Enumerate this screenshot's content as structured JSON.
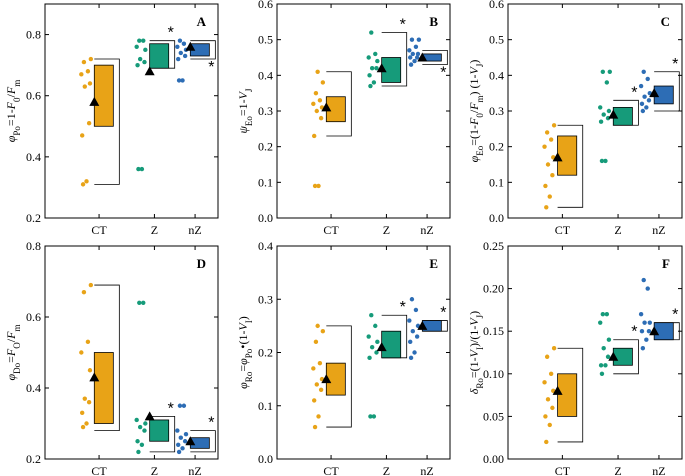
{
  "colors": {
    "CT": "#E8A317",
    "Z": "#169B7A",
    "nZ": "#2D6DB5"
  },
  "chart_data": [
    {
      "type": "box-scatter",
      "panel_label": "A",
      "ylabel": "φPo=1-F0/Fm",
      "ylabel_parts": [
        "φ",
        "Po",
        "=1-",
        "F",
        "0",
        "/",
        "F",
        "m"
      ],
      "ylim": [
        0.2,
        0.9
      ],
      "yticks": [
        0.2,
        0.4,
        0.6,
        0.8
      ],
      "categories": [
        "CT",
        "Z",
        "nZ"
      ],
      "show_xticks": true,
      "groups": [
        {
          "name": "CT",
          "points": [
            0.31,
            0.32,
            0.47,
            0.51,
            0.63,
            0.64,
            0.67,
            0.68,
            0.71,
            0.72
          ],
          "q1": 0.5,
          "q3": 0.7,
          "mean": 0.58,
          "whisker": [
            0.31,
            0.72
          ],
          "star": ""
        },
        {
          "name": "Z",
          "points": [
            0.36,
            0.36,
            0.7,
            0.71,
            0.72,
            0.75,
            0.76,
            0.78,
            0.78
          ],
          "q1": 0.69,
          "q3": 0.77,
          "mean": 0.68,
          "whisker": [
            0.69,
            0.78
          ],
          "star": "top"
        },
        {
          "name": "nZ",
          "points": [
            0.65,
            0.65,
            0.72,
            0.73,
            0.74,
            0.75,
            0.76,
            0.77,
            0.78
          ],
          "q1": 0.73,
          "q3": 0.77,
          "mean": 0.76,
          "whisker": [
            0.72,
            0.78
          ],
          "star": "bottom"
        }
      ]
    },
    {
      "type": "box-scatter",
      "panel_label": "B",
      "ylabel": "ψEo=1-VJ",
      "ylabel_parts": [
        "ψ",
        "Eo",
        "=1-",
        "V",
        "J"
      ],
      "ylim": [
        0.0,
        0.6
      ],
      "yticks": [
        0.0,
        0.1,
        0.2,
        0.3,
        0.4,
        0.5,
        0.6
      ],
      "categories": [
        "CT",
        "Z",
        "nZ"
      ],
      "show_xticks": true,
      "groups": [
        {
          "name": "CT",
          "points": [
            0.09,
            0.09,
            0.23,
            0.28,
            0.3,
            0.31,
            0.32,
            0.33,
            0.35,
            0.38,
            0.41
          ],
          "q1": 0.27,
          "q3": 0.34,
          "mean": 0.31,
          "whisker": [
            0.23,
            0.41
          ],
          "star": ""
        },
        {
          "name": "Z",
          "points": [
            0.37,
            0.38,
            0.4,
            0.42,
            0.42,
            0.44,
            0.45,
            0.46,
            0.52
          ],
          "q1": 0.38,
          "q3": 0.45,
          "mean": 0.42,
          "whisker": [
            0.37,
            0.52
          ],
          "star": "top"
        },
        {
          "name": "nZ",
          "points": [
            0.43,
            0.44,
            0.45,
            0.45,
            0.46,
            0.46,
            0.47,
            0.48,
            0.5,
            0.5
          ],
          "q1": 0.44,
          "q3": 0.46,
          "mean": 0.45,
          "whisker": [
            0.43,
            0.47
          ],
          "star": "bottom"
        }
      ]
    },
    {
      "type": "box-scatter",
      "panel_label": "C",
      "ylabel": "φEo=(1-F0/Fm) (1-VJ)",
      "ylabel_parts": [
        "φ",
        "Eo",
        "=(1-",
        "F",
        "0",
        "/",
        "F",
        "m",
        ") (1-",
        "V",
        "J",
        ")"
      ],
      "ylim": [
        0.0,
        0.6
      ],
      "yticks": [
        0.0,
        0.1,
        0.2,
        0.3,
        0.4,
        0.5,
        0.6
      ],
      "categories": [
        "CT",
        "Z",
        "nZ"
      ],
      "show_xticks": true,
      "groups": [
        {
          "name": "CT",
          "points": [
            0.03,
            0.06,
            0.09,
            0.12,
            0.15,
            0.17,
            0.2,
            0.22,
            0.24,
            0.26
          ],
          "q1": 0.12,
          "q3": 0.23,
          "mean": 0.17,
          "whisker": [
            0.03,
            0.26
          ],
          "star": ""
        },
        {
          "name": "Z",
          "points": [
            0.16,
            0.16,
            0.27,
            0.28,
            0.29,
            0.3,
            0.31,
            0.38,
            0.41,
            0.41
          ],
          "q1": 0.26,
          "q3": 0.31,
          "mean": 0.29,
          "whisker": [
            0.26,
            0.33
          ],
          "star": "top"
        },
        {
          "name": "nZ",
          "points": [
            0.3,
            0.31,
            0.32,
            0.33,
            0.34,
            0.35,
            0.37,
            0.39,
            0.41
          ],
          "q1": 0.32,
          "q3": 0.37,
          "mean": 0.35,
          "whisker": [
            0.3,
            0.41
          ],
          "star": "top"
        }
      ]
    },
    {
      "type": "box-scatter",
      "panel_label": "D",
      "ylabel": "φDo=F0/Fm",
      "ylabel_parts": [
        "φ",
        "Do",
        "=",
        "F",
        "O",
        "/",
        "F",
        "m"
      ],
      "ylim": [
        0.2,
        0.8
      ],
      "yticks": [
        0.2,
        0.4,
        0.6,
        0.8
      ],
      "categories": [
        "CT",
        "Z",
        "nZ"
      ],
      "show_xticks": true,
      "groups": [
        {
          "name": "CT",
          "points": [
            0.29,
            0.3,
            0.33,
            0.36,
            0.37,
            0.45,
            0.5,
            0.53,
            0.67,
            0.69
          ],
          "q1": 0.3,
          "q3": 0.5,
          "mean": 0.43,
          "whisker": [
            0.28,
            0.69
          ],
          "star": ""
        },
        {
          "name": "Z",
          "points": [
            0.22,
            0.24,
            0.25,
            0.28,
            0.29,
            0.3,
            0.31,
            0.64,
            0.64
          ],
          "q1": 0.25,
          "q3": 0.31,
          "mean": 0.32,
          "whisker": [
            0.22,
            0.32
          ],
          "star": "top"
        },
        {
          "name": "nZ",
          "points": [
            0.22,
            0.23,
            0.24,
            0.25,
            0.26,
            0.27,
            0.28,
            0.35,
            0.35
          ],
          "q1": 0.23,
          "q3": 0.26,
          "mean": 0.25,
          "whisker": [
            0.22,
            0.28
          ],
          "star": "top"
        }
      ]
    },
    {
      "type": "box-scatter",
      "panel_label": "E",
      "ylabel": "φRo=φPo•(1-VI)",
      "ylabel_parts": [
        "φ",
        "Ro",
        "=",
        "φ",
        "Po",
        "•(1-",
        "V",
        "I",
        ")"
      ],
      "ylim": [
        0.0,
        0.4
      ],
      "yticks": [
        0.0,
        0.1,
        0.2,
        0.3,
        0.4
      ],
      "categories": [
        "CT",
        "Z",
        "nZ"
      ],
      "show_xticks": true,
      "groups": [
        {
          "name": "CT",
          "points": [
            0.06,
            0.08,
            0.11,
            0.13,
            0.14,
            0.15,
            0.17,
            0.18,
            0.22,
            0.24,
            0.25
          ],
          "q1": 0.12,
          "q3": 0.18,
          "mean": 0.15,
          "whisker": [
            0.06,
            0.25
          ],
          "star": ""
        },
        {
          "name": "Z",
          "points": [
            0.08,
            0.08,
            0.19,
            0.2,
            0.21,
            0.22,
            0.23,
            0.25,
            0.27
          ],
          "q1": 0.19,
          "q3": 0.24,
          "mean": 0.21,
          "whisker": [
            0.19,
            0.27
          ],
          "star": "top"
        },
        {
          "name": "nZ",
          "points": [
            0.19,
            0.2,
            0.22,
            0.23,
            0.24,
            0.25,
            0.26,
            0.28,
            0.3
          ],
          "q1": 0.24,
          "q3": 0.26,
          "mean": 0.25,
          "whisker": [
            0.24,
            0.26
          ],
          "star": "top"
        }
      ]
    },
    {
      "type": "box-scatter",
      "panel_label": "F",
      "ylabel": "δRo=(1-VI)/(1-VJ)",
      "ylabel_parts": [
        "δ",
        "Ro",
        "=(1-",
        "V",
        "I",
        ")/(1-",
        "V",
        "J",
        ")"
      ],
      "ylim": [
        0.0,
        0.25
      ],
      "yticks": [
        0.0,
        0.05,
        0.1,
        0.15,
        0.2,
        0.25
      ],
      "categories": [
        "CT",
        "Z",
        "nZ"
      ],
      "show_xticks": true,
      "groups": [
        {
          "name": "CT",
          "points": [
            0.02,
            0.04,
            0.05,
            0.06,
            0.07,
            0.08,
            0.09,
            0.1,
            0.12,
            0.13
          ],
          "q1": 0.05,
          "q3": 0.1,
          "mean": 0.08,
          "whisker": [
            0.02,
            0.13
          ],
          "star": ""
        },
        {
          "name": "Z",
          "points": [
            0.1,
            0.11,
            0.11,
            0.12,
            0.13,
            0.14,
            0.16,
            0.17,
            0.17
          ],
          "q1": 0.11,
          "q3": 0.13,
          "mean": 0.12,
          "whisker": [
            0.1,
            0.14
          ],
          "star": "top"
        },
        {
          "name": "nZ",
          "points": [
            0.13,
            0.14,
            0.15,
            0.15,
            0.16,
            0.16,
            0.17,
            0.2,
            0.21
          ],
          "q1": 0.14,
          "q3": 0.16,
          "mean": 0.15,
          "whisker": [
            0.14,
            0.16
          ],
          "star": "top"
        }
      ]
    }
  ]
}
